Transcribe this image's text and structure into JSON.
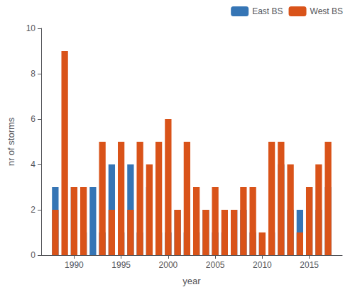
{
  "chart_data": {
    "type": "bar",
    "stacked": true,
    "xlabel": "year",
    "ylabel": "nr of storms",
    "x": [
      1988,
      1989,
      1990,
      1991,
      1992,
      1993,
      1994,
      1995,
      1996,
      1997,
      1998,
      1999,
      2000,
      2001,
      2002,
      2003,
      2004,
      2005,
      2006,
      2007,
      2008,
      2009,
      2010,
      2011,
      2012,
      2013,
      2014,
      2015,
      2016,
      2017
    ],
    "series": [
      {
        "name": "East BS",
        "color": "#3575b5",
        "values": [
          3,
          0,
          3,
          1,
          3,
          1,
          4,
          1,
          4,
          1,
          3,
          1,
          1,
          2,
          1,
          1,
          2,
          1,
          1,
          2,
          2,
          1,
          1,
          1,
          4,
          2,
          2,
          3,
          2,
          3
        ]
      },
      {
        "name": "West BS",
        "color": "#d95319",
        "values": [
          2,
          9,
          3,
          3,
          0,
          5,
          2,
          5,
          2,
          5,
          4,
          5,
          6,
          2,
          5,
          3,
          2,
          3,
          2,
          2,
          3,
          3,
          1,
          5,
          5,
          4,
          1,
          3,
          4,
          5
        ]
      }
    ],
    "xlim": [
      1986.5,
      2018.5
    ],
    "xticks": [
      1990,
      1995,
      2000,
      2005,
      2010,
      2015
    ],
    "ylim": [
      0,
      10
    ],
    "yticks": [
      0,
      2,
      4,
      6,
      8,
      10
    ],
    "grid": false,
    "legend": "upper right"
  }
}
